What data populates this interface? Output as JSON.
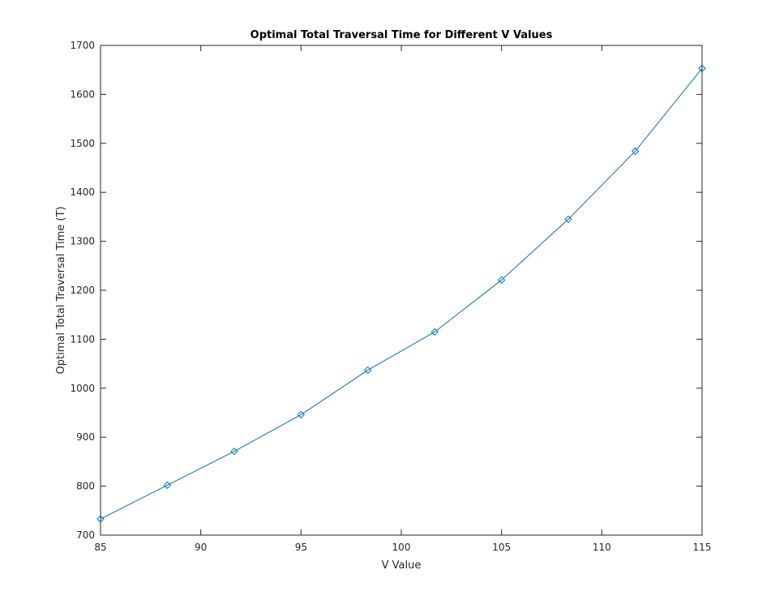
{
  "chart_data": {
    "type": "line",
    "title": "Optimal Total Traversal Time for Different V Values",
    "xlabel": "V Value",
    "ylabel": "Optimal Total Traversal Time (T)",
    "xlim": [
      85,
      115
    ],
    "ylim": [
      700,
      1700
    ],
    "xticks": [
      85,
      90,
      95,
      100,
      105,
      110,
      115
    ],
    "yticks": [
      700,
      800,
      900,
      1000,
      1100,
      1200,
      1300,
      1400,
      1500,
      1600,
      1700
    ],
    "grid": false,
    "marker": "diamond",
    "color": "#0072bd",
    "series": [
      {
        "x": [
          85,
          88.33,
          91.67,
          95,
          98.33,
          101.67,
          105,
          108.33,
          111.67,
          115
        ],
        "y": [
          733,
          802,
          871,
          946,
          1037,
          1115,
          1221,
          1345,
          1484,
          1653
        ]
      }
    ]
  }
}
